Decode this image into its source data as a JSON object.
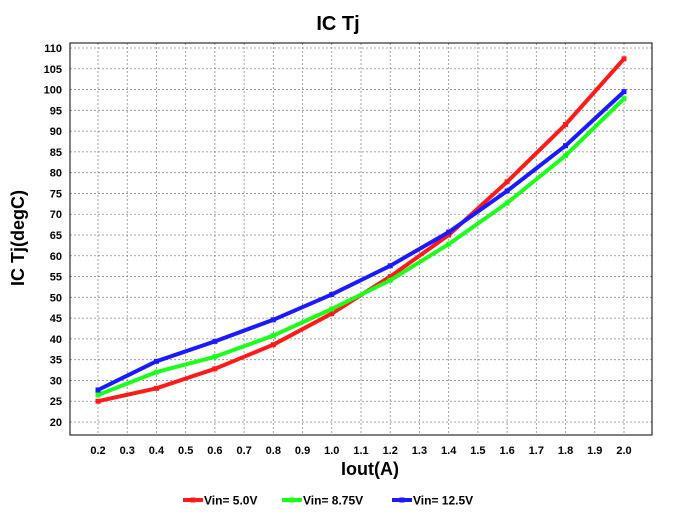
{
  "chart_data": {
    "type": "line",
    "title": "IC Tj",
    "xlabel": "Iout(A)",
    "ylabel": "IC Tj(degC)",
    "xlim": [
      0.2,
      2.0
    ],
    "ylim": [
      20,
      110
    ],
    "x_ticks": [
      0.2,
      0.3,
      0.4,
      0.5,
      0.6,
      0.7,
      0.8,
      0.9,
      1.0,
      1.1,
      1.2,
      1.3,
      1.4,
      1.5,
      1.6,
      1.7,
      1.8,
      1.9,
      2.0
    ],
    "y_ticks": [
      20,
      25,
      30,
      35,
      40,
      45,
      50,
      55,
      60,
      65,
      70,
      75,
      80,
      85,
      90,
      95,
      100,
      105,
      110
    ],
    "grid": true,
    "legend_position": "bottom",
    "x": [
      0.2,
      0.4,
      0.6,
      0.8,
      1.0,
      1.2,
      1.4,
      1.6,
      1.8,
      2.0
    ],
    "series": [
      {
        "name": "Vin= 5.0V",
        "color": "#ff1a1a",
        "values": [
          25.0,
          28.1,
          32.8,
          38.6,
          46.1,
          55.0,
          65.0,
          77.8,
          91.6,
          107.4
        ]
      },
      {
        "name": "Vin= 8.75V",
        "color": "#1aff1a",
        "values": [
          26.5,
          32.0,
          35.7,
          40.8,
          47.2,
          54.1,
          62.8,
          72.7,
          84.1,
          97.8
        ]
      },
      {
        "name": "Vin= 12.5V",
        "color": "#1a1aff",
        "values": [
          27.7,
          34.6,
          39.4,
          44.6,
          50.7,
          57.6,
          65.7,
          75.6,
          86.5,
          99.5
        ]
      }
    ]
  }
}
